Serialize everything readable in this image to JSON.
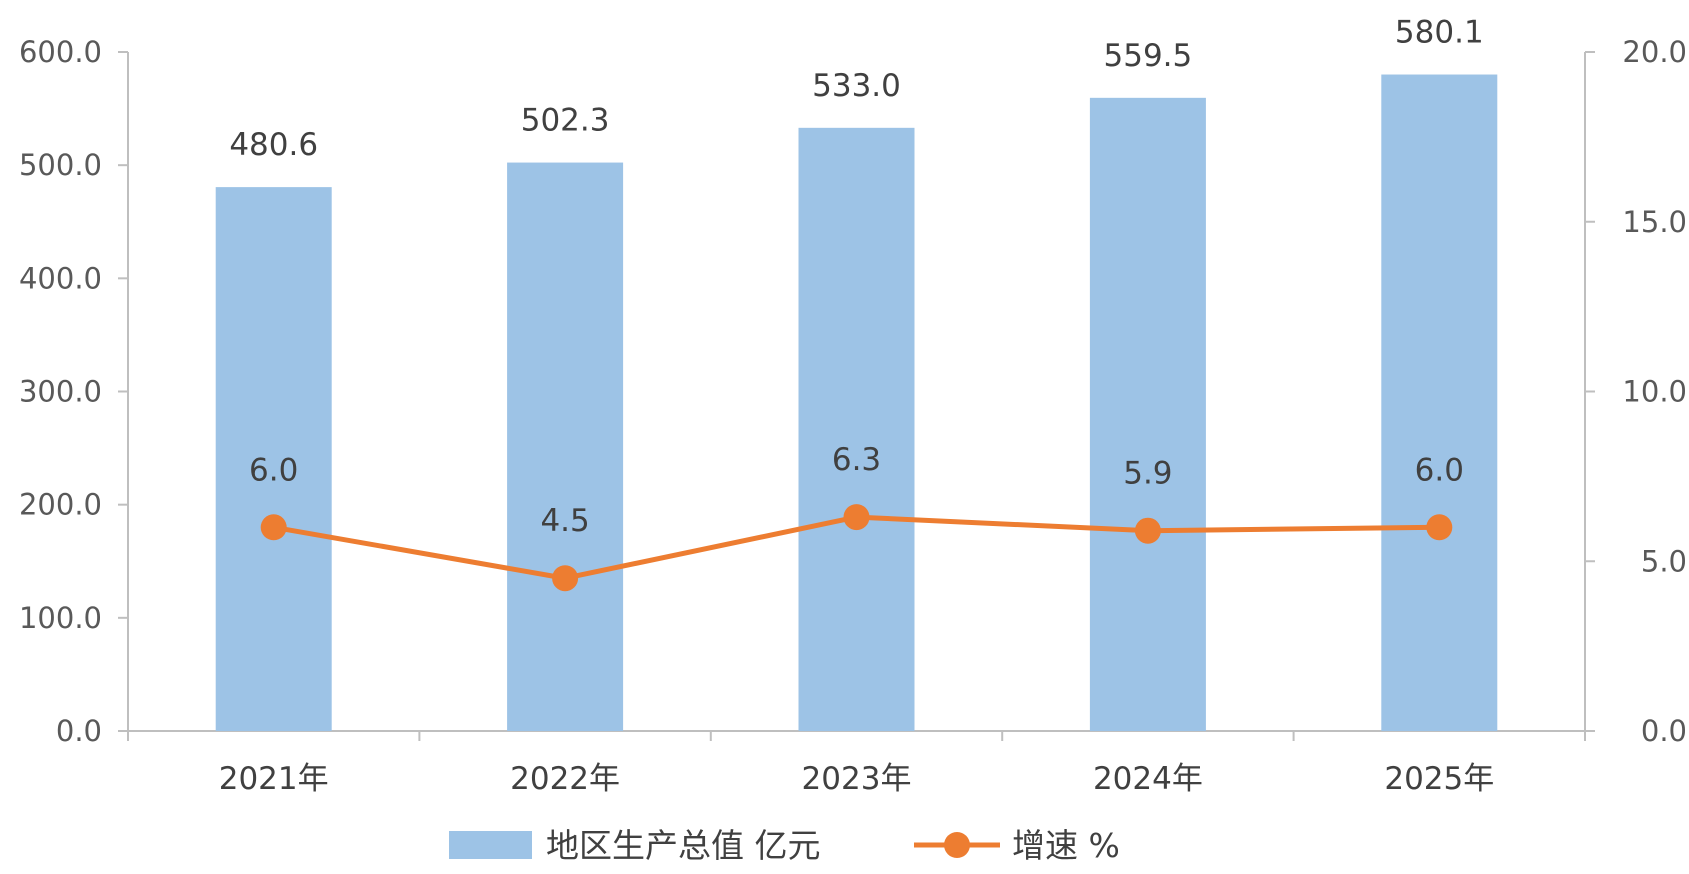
{
  "chart_data": {
    "type": "bar",
    "categories": [
      "2021年",
      "2022年",
      "2023年",
      "2024年",
      "2025年"
    ],
    "series": [
      {
        "name": "地区生产总值 亿元",
        "type": "bar",
        "axis": "left",
        "values": [
          480.6,
          502.3,
          533.0,
          559.5,
          580.1
        ],
        "labels": [
          "480.6",
          "502.3",
          "533.0",
          "559.5",
          "580.1"
        ]
      },
      {
        "name": "增速 %",
        "type": "line",
        "axis": "right",
        "values": [
          6.0,
          4.5,
          6.3,
          5.9,
          6.0
        ],
        "labels": [
          "6.0",
          "4.5",
          "6.3",
          "5.9",
          "6.0"
        ]
      }
    ],
    "y_left": {
      "range": [
        0,
        600
      ],
      "ticks": [
        "0.0",
        "100.0",
        "200.0",
        "300.0",
        "400.0",
        "500.0",
        "600.0"
      ]
    },
    "y_right": {
      "range": [
        0,
        20
      ],
      "ticks": [
        "0.0",
        "5.0",
        "10.0",
        "15.0",
        "20.0"
      ]
    },
    "grid": false,
    "legend": "bottom-center",
    "colors": {
      "bar": "#9dc3e6",
      "line": "#ed7d31",
      "axis": "#bfbfbf"
    }
  }
}
